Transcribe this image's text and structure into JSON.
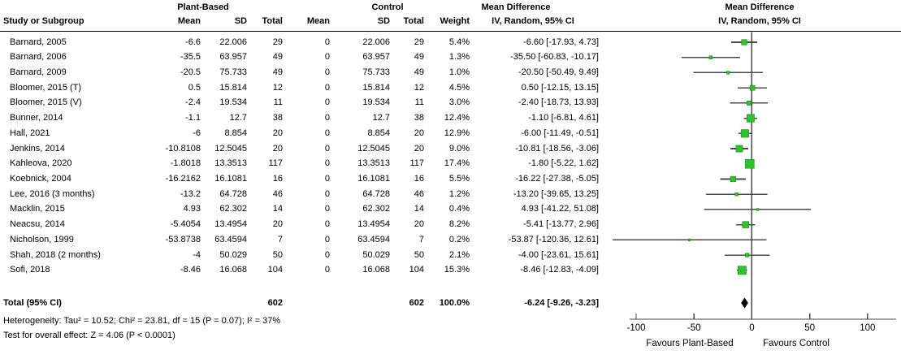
{
  "colors": {
    "marker_fill": "#2ec22e",
    "marker_border": "#0d8a0d",
    "ci_line": "#4a4a4a",
    "axis": "#4a4a4a",
    "diamond": "#000000",
    "text": "#000000"
  },
  "table": {
    "group_headers": {
      "plant_based": "Plant-Based",
      "control": "Control",
      "md": "Mean Difference"
    },
    "headers": {
      "study": "Study or Subgroup",
      "mean": "Mean",
      "sd": "SD",
      "total": "Total",
      "weight": "Weight",
      "iv": "IV, Random, 95% CI"
    }
  },
  "chart_data": {
    "type": "scatter",
    "subtype": "forest-plot",
    "effect_measure": "Mean Difference, IV, Random, 95% CI",
    "x_axis": {
      "ticks": [
        -100,
        -50,
        0,
        50,
        100
      ],
      "range": [
        -123,
        129
      ]
    },
    "favours_left": "Favours Plant-Based",
    "favours_right": "Favours Control",
    "studies": [
      {
        "name": "Barnard, 2005",
        "mean": "-6.6",
        "sd": "22.006",
        "total": "29",
        "c_mean": "0",
        "c_sd": "22.006",
        "c_total": "29",
        "weight": "5.4%",
        "md_label": "-6.60 [-17.93, 4.73]",
        "md": -6.6,
        "ci_low": -17.93,
        "ci_high": 4.73
      },
      {
        "name": "Barnard, 2006",
        "mean": "-35.5",
        "sd": "63.957",
        "total": "49",
        "c_mean": "0",
        "c_sd": "63.957",
        "c_total": "49",
        "weight": "1.3%",
        "md_label": "-35.50 [-60.83, -10.17]",
        "md": -35.5,
        "ci_low": -60.83,
        "ci_high": -10.17
      },
      {
        "name": "Barnard, 2009",
        "mean": "-20.5",
        "sd": "75.733",
        "total": "49",
        "c_mean": "0",
        "c_sd": "75.733",
        "c_total": "49",
        "weight": "1.0%",
        "md_label": "-20.50 [-50.49, 9.49]",
        "md": -20.5,
        "ci_low": -50.49,
        "ci_high": 9.49
      },
      {
        "name": "Bloomer, 2015 (T)",
        "mean": "0.5",
        "sd": "15.814",
        "total": "12",
        "c_mean": "0",
        "c_sd": "15.814",
        "c_total": "12",
        "weight": "4.5%",
        "md_label": "0.50 [-12.15, 13.15]",
        "md": 0.5,
        "ci_low": -12.15,
        "ci_high": 13.15
      },
      {
        "name": "Bloomer, 2015 (V)",
        "mean": "-2.4",
        "sd": "19.534",
        "total": "11",
        "c_mean": "0",
        "c_sd": "19.534",
        "c_total": "11",
        "weight": "3.0%",
        "md_label": "-2.40 [-18.73, 13.93]",
        "md": -2.4,
        "ci_low": -18.73,
        "ci_high": 13.93
      },
      {
        "name": "Bunner, 2014",
        "mean": "-1.1",
        "sd": "12.7",
        "total": "38",
        "c_mean": "0",
        "c_sd": "12.7",
        "c_total": "38",
        "weight": "12.4%",
        "md_label": "-1.10 [-6.81, 4.61]",
        "md": -1.1,
        "ci_low": -6.81,
        "ci_high": 4.61
      },
      {
        "name": "Hall, 2021",
        "mean": "-6",
        "sd": "8.854",
        "total": "20",
        "c_mean": "0",
        "c_sd": "8.854",
        "c_total": "20",
        "weight": "12.9%",
        "md_label": "-6.00 [-11.49, -0.51]",
        "md": -6.0,
        "ci_low": -11.49,
        "ci_high": -0.51
      },
      {
        "name": "Jenkins, 2014",
        "mean": "-10.8108",
        "sd": "12.5045",
        "total": "20",
        "c_mean": "0",
        "c_sd": "12.5045",
        "c_total": "20",
        "weight": "9.0%",
        "md_label": "-10.81 [-18.56, -3.06]",
        "md": -10.81,
        "ci_low": -18.56,
        "ci_high": -3.06
      },
      {
        "name": "Kahleova, 2020",
        "mean": "-1.8018",
        "sd": "13.3513",
        "total": "117",
        "c_mean": "0",
        "c_sd": "13.3513",
        "c_total": "117",
        "weight": "17.4%",
        "md_label": "-1.80 [-5.22, 1.62]",
        "md": -1.8,
        "ci_low": -5.22,
        "ci_high": 1.62
      },
      {
        "name": "Koebnick, 2004",
        "mean": "-16.2162",
        "sd": "16.1081",
        "total": "16",
        "c_mean": "0",
        "c_sd": "16.1081",
        "c_total": "16",
        "weight": "5.5%",
        "md_label": "-16.22 [-27.38, -5.05]",
        "md": -16.22,
        "ci_low": -27.38,
        "ci_high": -5.05
      },
      {
        "name": "Lee, 2016 (3 months)",
        "mean": "-13.2",
        "sd": "64.728",
        "total": "46",
        "c_mean": "0",
        "c_sd": "64.728",
        "c_total": "46",
        "weight": "1.2%",
        "md_label": "-13.20 [-39.65, 13.25]",
        "md": -13.2,
        "ci_low": -39.65,
        "ci_high": 13.25
      },
      {
        "name": "Macklin, 2015",
        "mean": "4.93",
        "sd": "62.302",
        "total": "14",
        "c_mean": "0",
        "c_sd": "62.302",
        "c_total": "14",
        "weight": "0.4%",
        "md_label": "4.93 [-41.22, 51.08]",
        "md": 4.93,
        "ci_low": -41.22,
        "ci_high": 51.08
      },
      {
        "name": "Neacsu, 2014",
        "mean": "-5.4054",
        "sd": "13.4954",
        "total": "20",
        "c_mean": "0",
        "c_sd": "13.4954",
        "c_total": "20",
        "weight": "8.2%",
        "md_label": "-5.41 [-13.77, 2.96]",
        "md": -5.41,
        "ci_low": -13.77,
        "ci_high": 2.96
      },
      {
        "name": "Nicholson, 1999",
        "mean": "-53.8738",
        "sd": "63.4594",
        "total": "7",
        "c_mean": "0",
        "c_sd": "63.4594",
        "c_total": "7",
        "weight": "0.2%",
        "md_label": "-53.87 [-120.36, 12.61]",
        "md": -53.87,
        "ci_low": -120.36,
        "ci_high": 12.61
      },
      {
        "name": "Shah, 2018 (2 months)",
        "mean": "-4",
        "sd": "50.029",
        "total": "50",
        "c_mean": "0",
        "c_sd": "50.029",
        "c_total": "50",
        "weight": "2.1%",
        "md_label": "-4.00 [-23.61, 15.61]",
        "md": -4.0,
        "ci_low": -23.61,
        "ci_high": 15.61
      },
      {
        "name": "Sofi, 2018",
        "mean": "-8.46",
        "sd": "16.068",
        "total": "104",
        "c_mean": "0",
        "c_sd": "16.068",
        "c_total": "104",
        "weight": "15.3%",
        "md_label": "-8.46 [-12.83, -4.09]",
        "md": -8.46,
        "ci_low": -12.83,
        "ci_high": -4.09
      }
    ],
    "total": {
      "label": "Total (95% CI)",
      "total": "602",
      "c_total": "602",
      "weight": "100.0%",
      "md_label": "-6.24 [-9.26, -3.23]",
      "md": -6.24,
      "ci_low": -9.26,
      "ci_high": -3.23
    },
    "footnotes": [
      "Heterogeneity: Tau² = 10.52; Chi² = 23.81, df = 15 (P = 0.07); I² = 37%",
      "Test for overall effect: Z = 4.06 (P < 0.0001)"
    ]
  }
}
